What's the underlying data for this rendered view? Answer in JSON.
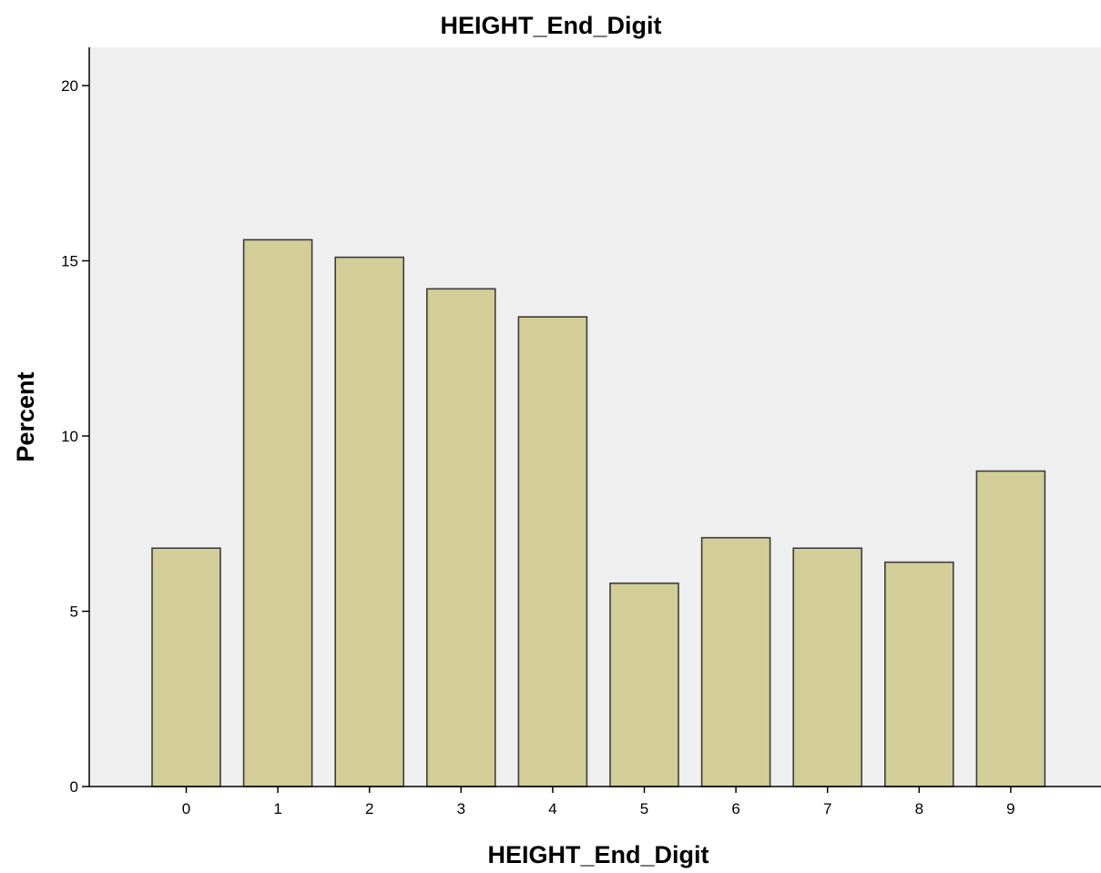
{
  "chart_data": {
    "type": "bar",
    "title": "HEIGHT_End_Digit",
    "xlabel": "HEIGHT_End_Digit",
    "ylabel": "Percent",
    "categories": [
      "0",
      "1",
      "2",
      "3",
      "4",
      "5",
      "6",
      "7",
      "8",
      "9"
    ],
    "values": [
      6.8,
      15.6,
      15.1,
      14.2,
      13.4,
      5.8,
      7.1,
      6.8,
      6.4,
      9.0
    ],
    "ylim": [
      0,
      21
    ],
    "yticks": [
      "0",
      "5",
      "10",
      "15",
      "20"
    ],
    "ytick_values": [
      0,
      5,
      10,
      15,
      20
    ],
    "grid": false,
    "colors": {
      "bar_fill": "#d3ce97",
      "bar_stroke": "#3c3c3c",
      "plot_background": "#efefef",
      "axis": "#000000"
    }
  }
}
